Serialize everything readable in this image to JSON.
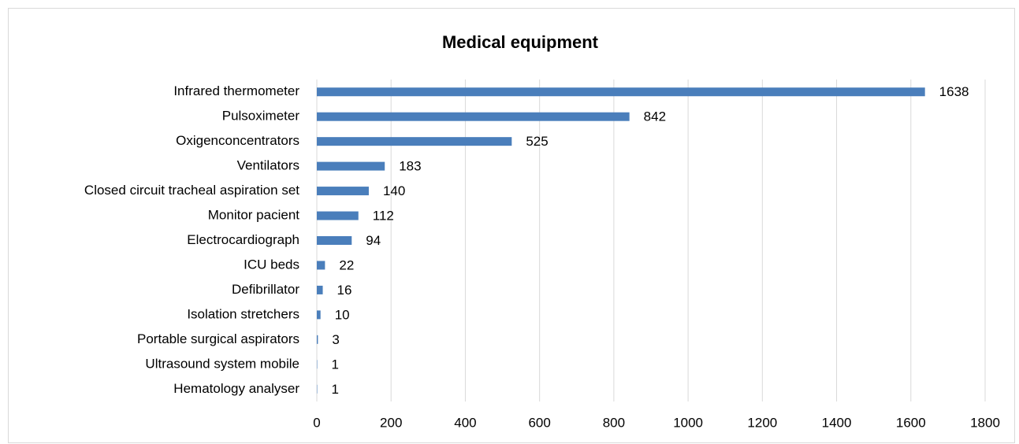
{
  "chart_data": {
    "type": "bar",
    "orientation": "horizontal",
    "title": "Medical equipment",
    "categories": [
      "Infrared thermometer",
      "Pulsoximeter",
      "Oxigenconcentrators",
      "Ventilators",
      "Closed circuit tracheal aspiration set",
      "Monitor pacient",
      "Electrocardiograph",
      "ICU beds",
      "Defibrillator",
      "Isolation stretchers",
      "Portable surgical aspirators",
      "Ultrasound system mobile",
      "Hematology analyser"
    ],
    "values": [
      1638,
      842,
      525,
      183,
      140,
      112,
      94,
      22,
      16,
      10,
      3,
      1,
      1
    ],
    "color": "#4a7ebb",
    "xlim": [
      0,
      1800
    ],
    "xticks": [
      0,
      200,
      400,
      600,
      800,
      1000,
      1200,
      1400,
      1600,
      1800
    ],
    "grid": true
  }
}
